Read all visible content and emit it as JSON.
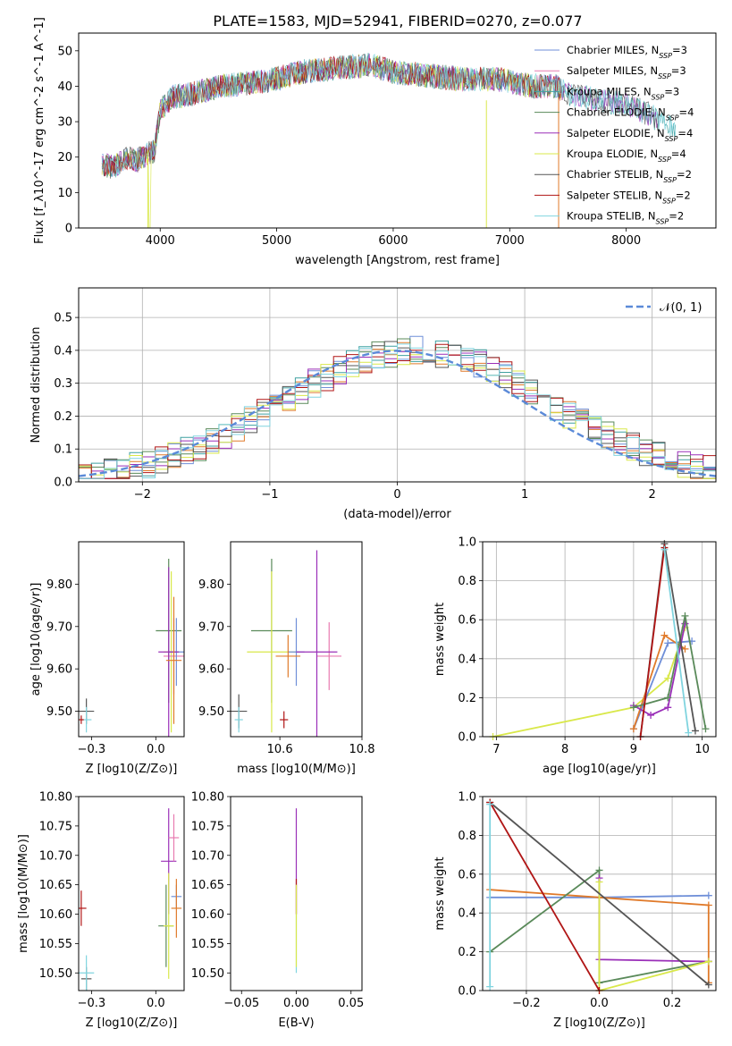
{
  "figure": {
    "title": "PLATE=1583, MJD=52941, FIBERID=0270, z=0.077"
  },
  "colors": {
    "chabrier_miles": "#6f8fd8",
    "salpeter_miles": "#e07a2a",
    "kroupa_miles": "#3fa0a0",
    "chabrier_elodie": "#5a8a5a",
    "salpeter_elodie": "#9a2fb8",
    "kroupa_elodie": "#d9e84a",
    "chabrier_stelib": "#555555",
    "salpeter_stelib": "#b01515",
    "kroupa_stelib": "#80d4df",
    "normal_curve": "#5b8ad8",
    "pink": "#e87ab0"
  },
  "chart_data": [
    {
      "id": "spectrum",
      "type": "line",
      "xlabel": "wavelength [Angstrom, rest frame]",
      "ylabel": "Flux [f_λ10^-17 erg cm^-2 s^-1 A^-1]",
      "xlim": [
        3300,
        8770
      ],
      "ylim": [
        0,
        55
      ],
      "xticks": [
        4000,
        5000,
        6000,
        7000,
        8000
      ],
      "yticks": [
        0,
        10,
        20,
        30,
        40,
        50
      ],
      "legend_placement": "upper-right",
      "series": [
        {
          "name": "Chabrier MILES, N_SSP=3",
          "color_key": "chabrier_miles"
        },
        {
          "name": "Salpeter MILES, N_SSP=3",
          "color_key": "pink"
        },
        {
          "name": "Kroupa MILES, N_SSP=3",
          "color_key": "kroupa_miles"
        },
        {
          "name": "Chabrier ELODIE, N_SSP=4",
          "color_key": "chabrier_elodie"
        },
        {
          "name": "Salpeter ELODIE, N_SSP=4",
          "color_key": "salpeter_elodie"
        },
        {
          "name": "Kroupa ELODIE, N_SSP=4",
          "color_key": "kroupa_elodie"
        },
        {
          "name": "Chabrier STELIB, N_SSP=2",
          "color_key": "chabrier_stelib"
        },
        {
          "name": "Salpeter STELIB, N_SSP=2",
          "color_key": "salpeter_stelib"
        },
        {
          "name": "Kroupa STELIB, N_SSP=2",
          "color_key": "kroupa_stelib"
        }
      ],
      "envelope": {
        "x": [
          3500,
          3600,
          3700,
          3800,
          3900,
          3950,
          4000,
          4100,
          4300,
          4500,
          4800,
          5000,
          5200,
          5500,
          5800,
          6000,
          6300,
          6600,
          6900,
          7200,
          7400,
          7500,
          7600,
          7800,
          8000,
          8200,
          8400
        ],
        "y": [
          18,
          17,
          20,
          19,
          21,
          22,
          33,
          37,
          38,
          40,
          41,
          42,
          44,
          45,
          46,
          44,
          43,
          42,
          42,
          40,
          40,
          38,
          37,
          36,
          35,
          32,
          28
        ]
      }
    },
    {
      "id": "residuals",
      "type": "line",
      "xlabel": "(data-model)/error",
      "ylabel": "Normed distribution",
      "xlim": [
        -2.5,
        2.5
      ],
      "ylim": [
        0,
        0.59
      ],
      "xticks": [
        -2,
        -1,
        0,
        1,
        2
      ],
      "yticks": [
        0.0,
        0.1,
        0.2,
        0.3,
        0.4,
        0.5
      ],
      "grid": true,
      "legend_placement": "upper-right",
      "legend": "𝒩(0, 1)",
      "curve": "normal(0,1)"
    },
    {
      "id": "age_vs_Z",
      "type": "scatter",
      "xlabel": "Z [log10(Z/Z⊙)]",
      "ylabel": "age  [log10(age/yr)]",
      "xlim": [
        -0.3,
        0.11
      ],
      "ylim": [
        9.44,
        9.9
      ],
      "xticks": [
        -0.25,
        0.0
      ],
      "yticks": [
        9.5,
        9.6,
        9.7,
        9.8
      ],
      "points": [
        {
          "x": 0.05,
          "y": 9.69,
          "xerr": 0.05,
          "yerr": 0.17,
          "color_key": "chabrier_elodie"
        },
        {
          "x": 0.06,
          "y": 9.64,
          "xerr": 0.03,
          "yerr": 0.19,
          "color_key": "kroupa_elodie"
        },
        {
          "x": 0.07,
          "y": 9.63,
          "xerr": 0.04,
          "yerr": 0.09,
          "color_key": "pink"
        },
        {
          "x": 0.08,
          "y": 9.64,
          "xerr": 0.03,
          "yerr": 0.08,
          "color_key": "chabrier_miles"
        },
        {
          "x": 0.05,
          "y": 9.64,
          "xerr": 0.04,
          "yerr": 0.2,
          "color_key": "salpeter_elodie"
        },
        {
          "x": 0.07,
          "y": 9.62,
          "xerr": 0.03,
          "yerr": 0.15,
          "color_key": "salpeter_miles"
        },
        {
          "x": -0.27,
          "y": 9.5,
          "xerr": 0.03,
          "yerr": 0.03,
          "color_key": "chabrier_stelib"
        },
        {
          "x": -0.27,
          "y": 9.48,
          "xerr": 0.02,
          "yerr": 0.03,
          "color_key": "kroupa_stelib"
        },
        {
          "x": -0.29,
          "y": 9.48,
          "xerr": 0.01,
          "yerr": 0.01,
          "color_key": "salpeter_stelib"
        }
      ]
    },
    {
      "id": "age_vs_mass",
      "type": "scatter",
      "xlabel": "mass [log10(M/M⊙)]",
      "ylabel": "",
      "xlim": [
        10.48,
        10.8
      ],
      "ylim": [
        9.44,
        9.9
      ],
      "xticks": [
        10.6,
        10.8
      ],
      "yticks": [
        9.5,
        9.6,
        9.7,
        9.8
      ],
      "points": [
        {
          "x": 10.58,
          "y": 9.69,
          "xerr": 0.05,
          "yerr": 0.17,
          "color_key": "chabrier_elodie"
        },
        {
          "x": 10.58,
          "y": 9.64,
          "xerr": 0.06,
          "yerr": 0.19,
          "color_key": "kroupa_elodie"
        },
        {
          "x": 10.72,
          "y": 9.63,
          "xerr": 0.03,
          "yerr": 0.08,
          "color_key": "pink"
        },
        {
          "x": 10.64,
          "y": 9.64,
          "xerr": 0.02,
          "yerr": 0.08,
          "color_key": "chabrier_miles"
        },
        {
          "x": 10.69,
          "y": 9.64,
          "xerr": 0.05,
          "yerr": 0.24,
          "color_key": "salpeter_elodie"
        },
        {
          "x": 10.62,
          "y": 9.63,
          "xerr": 0.03,
          "yerr": 0.05,
          "color_key": "salpeter_miles"
        },
        {
          "x": 10.5,
          "y": 9.5,
          "xerr": 0.02,
          "yerr": 0.04,
          "color_key": "chabrier_stelib"
        },
        {
          "x": 10.5,
          "y": 9.48,
          "xerr": 0.01,
          "yerr": 0.03,
          "color_key": "kroupa_stelib"
        },
        {
          "x": 10.61,
          "y": 9.48,
          "xerr": 0.01,
          "yerr": 0.02,
          "color_key": "salpeter_stelib"
        }
      ]
    },
    {
      "id": "weight_vs_age",
      "type": "line",
      "xlabel": "age  [log10(age/yr)]",
      "ylabel": "mass weight",
      "xlim": [
        6.8,
        10.2
      ],
      "ylim": [
        0.0,
        1.0
      ],
      "xticks": [
        7,
        8,
        9,
        10
      ],
      "yticks": [
        0.0,
        0.2,
        0.4,
        0.6,
        0.8,
        1.0
      ],
      "grid": true,
      "series": [
        {
          "color_key": "kroupa_elodie",
          "x": [
            6.95,
            9.0,
            9.5,
            9.75
          ],
          "y": [
            0.0,
            0.15,
            0.3,
            0.56
          ]
        },
        {
          "color_key": "chabrier_miles",
          "x": [
            9.0,
            9.5,
            9.85
          ],
          "y": [
            0.04,
            0.48,
            0.49
          ]
        },
        {
          "color_key": "salpeter_miles",
          "x": [
            9.0,
            9.45,
            9.75
          ],
          "y": [
            0.04,
            0.52,
            0.45
          ]
        },
        {
          "color_key": "salpeter_elodie",
          "x": [
            9.0,
            9.25,
            9.5,
            9.75
          ],
          "y": [
            0.16,
            0.11,
            0.15,
            0.58
          ]
        },
        {
          "color_key": "chabrier_elodie",
          "x": [
            9.0,
            9.5,
            9.75,
            10.05
          ],
          "y": [
            0.15,
            0.2,
            0.62,
            0.04
          ]
        },
        {
          "color_key": "chabrier_stelib",
          "x": [
            9.1,
            9.45,
            9.9
          ],
          "y": [
            0.0,
            0.99,
            0.03
          ]
        },
        {
          "color_key": "salpeter_stelib",
          "x": [
            9.1,
            9.45
          ],
          "y": [
            0.0,
            0.97
          ]
        },
        {
          "color_key": "kroupa_stelib",
          "x": [
            9.45,
            9.8
          ],
          "y": [
            0.96,
            0.02
          ]
        }
      ]
    },
    {
      "id": "mass_vs_Z",
      "type": "scatter",
      "xlabel": "Z [log10(Z/Z⊙)]",
      "ylabel": "mass [log10(M/M⊙)]",
      "xlim": [
        -0.3,
        0.11
      ],
      "ylim": [
        10.47,
        10.8
      ],
      "xticks": [
        -0.25,
        0.0
      ],
      "yticks": [
        10.5,
        10.55,
        10.6,
        10.65,
        10.7,
        10.75,
        10.8
      ],
      "points": [
        {
          "x": 0.05,
          "y": 10.69,
          "xerr": 0.03,
          "yerr": 0.09,
          "color_key": "salpeter_elodie"
        },
        {
          "x": 0.07,
          "y": 10.73,
          "xerr": 0.02,
          "yerr": 0.04,
          "color_key": "pink"
        },
        {
          "x": 0.08,
          "y": 10.63,
          "xerr": 0.02,
          "yerr": 0.02,
          "color_key": "chabrier_miles"
        },
        {
          "x": 0.08,
          "y": 10.61,
          "xerr": 0.02,
          "yerr": 0.05,
          "color_key": "salpeter_miles"
        },
        {
          "x": 0.04,
          "y": 10.58,
          "xerr": 0.03,
          "yerr": 0.07,
          "color_key": "chabrier_elodie"
        },
        {
          "x": 0.05,
          "y": 10.58,
          "xerr": 0.02,
          "yerr": 0.09,
          "color_key": "kroupa_elodie"
        },
        {
          "x": -0.27,
          "y": 10.49,
          "xerr": 0.02,
          "yerr": 0.02,
          "color_key": "chabrier_stelib"
        },
        {
          "x": -0.27,
          "y": 10.5,
          "xerr": 0.03,
          "yerr": 0.03,
          "color_key": "kroupa_stelib"
        },
        {
          "x": -0.29,
          "y": 10.61,
          "xerr": 0.02,
          "yerr": 0.03,
          "color_key": "salpeter_stelib"
        }
      ]
    },
    {
      "id": "mass_vs_ebv",
      "type": "scatter",
      "xlabel": "E(B-V)",
      "ylabel": "",
      "xlim": [
        -0.06,
        0.06
      ],
      "ylim": [
        10.47,
        10.8
      ],
      "xticks": [
        -0.05,
        0.0,
        0.05
      ],
      "yticks": [
        10.5,
        10.55,
        10.6,
        10.65,
        10.7,
        10.75,
        10.8
      ],
      "points": [
        {
          "x": 0.0,
          "y": 10.69,
          "xerr": 0.0,
          "yerr": 0.09,
          "color_key": "salpeter_elodie"
        },
        {
          "x": 0.0,
          "y": 10.63,
          "xerr": 0.0,
          "yerr": 0.03,
          "color_key": "salpeter_stelib"
        },
        {
          "x": 0.0,
          "y": 10.55,
          "xerr": 0.0,
          "yerr": 0.05,
          "color_key": "kroupa_stelib"
        },
        {
          "x": 0.0,
          "y": 10.58,
          "xerr": 0.0,
          "yerr": 0.07,
          "color_key": "kroupa_elodie"
        }
      ]
    },
    {
      "id": "weight_vs_Z",
      "type": "line",
      "xlabel": "Z [log10(Z/Z⊙)]",
      "ylabel": "mass weight",
      "xlim": [
        -0.32,
        0.32
      ],
      "ylim": [
        0.0,
        1.0
      ],
      "xticks": [
        -0.2,
        0.0,
        0.2
      ],
      "yticks": [
        0.0,
        0.2,
        0.4,
        0.6,
        0.8,
        1.0
      ],
      "grid": true,
      "series": [
        {
          "color_key": "chabrier_miles",
          "x": [
            -0.3,
            0.0,
            0.3
          ],
          "y": [
            0.48,
            0.48,
            0.49
          ]
        },
        {
          "color_key": "salpeter_miles",
          "x": [
            -0.3,
            0.0,
            0.3,
            0.3
          ],
          "y": [
            0.52,
            0.48,
            0.44,
            0.04
          ]
        },
        {
          "color_key": "chabrier_elodie",
          "x": [
            -0.3,
            0.0,
            0.0,
            0.3
          ],
          "y": [
            0.2,
            0.62,
            0.04,
            0.15
          ]
        },
        {
          "color_key": "salpeter_elodie",
          "x": [
            0.0,
            0.0,
            0.3
          ],
          "y": [
            0.58,
            0.16,
            0.15
          ]
        },
        {
          "color_key": "kroupa_elodie",
          "x": [
            0.0,
            0.0,
            0.3
          ],
          "y": [
            0.56,
            0.0,
            0.15
          ]
        },
        {
          "color_key": "chabrier_stelib",
          "x": [
            -0.3,
            0.3
          ],
          "y": [
            0.97,
            0.03
          ]
        },
        {
          "color_key": "salpeter_stelib",
          "x": [
            -0.3,
            0.0
          ],
          "y": [
            0.97,
            0.0
          ]
        },
        {
          "color_key": "kroupa_stelib",
          "x": [
            -0.3,
            -0.3
          ],
          "y": [
            0.96,
            0.02
          ]
        }
      ]
    }
  ]
}
